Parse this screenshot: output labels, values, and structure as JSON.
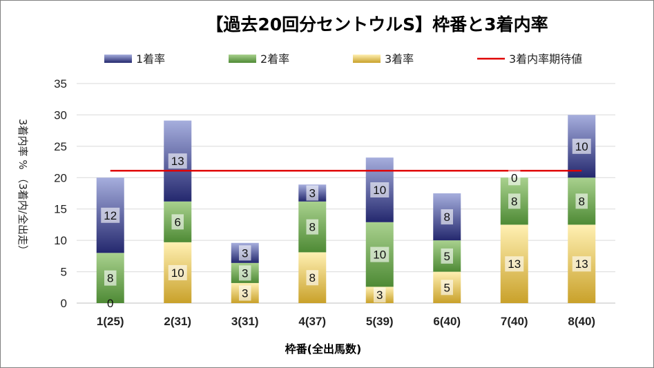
{
  "chart_data": {
    "type": "bar",
    "stacked": true,
    "title": "【過去20回分セントウルS】枠番と3着内率",
    "xlabel": "枠番(全出馬数)",
    "ylabel": "3着内率 % （3着内/全出走）",
    "ylim": [
      0,
      35
    ],
    "ytick_step": 5,
    "grid": true,
    "legend_position": "top",
    "categories": [
      "1(25)",
      "2(31)",
      "3(31)",
      "4(37)",
      "5(39)",
      "6(40)",
      "7(40)",
      "8(40)"
    ],
    "series": [
      {
        "name": "3着率",
        "values": [
          0,
          9.7,
          3.2,
          8.1,
          2.6,
          5.0,
          12.5,
          12.5
        ],
        "labels": [
          "0",
          "10",
          "3",
          "8",
          "3",
          "5",
          "13",
          "13"
        ],
        "color_light": "#fff0b3",
        "color_dark": "#c9a12a"
      },
      {
        "name": "2着率",
        "values": [
          8.0,
          6.5,
          3.2,
          8.1,
          10.3,
          5.0,
          7.5,
          7.5
        ],
        "labels": [
          "8",
          "6",
          "3",
          "8",
          "10",
          "5",
          "8",
          "8"
        ],
        "color_light": "#a9d18e",
        "color_dark": "#4e8a35"
      },
      {
        "name": "1着率",
        "values": [
          12.0,
          12.9,
          3.2,
          2.7,
          10.3,
          7.5,
          0,
          10.0
        ],
        "labels": [
          "12",
          "13",
          "3",
          "3",
          "10",
          "8",
          "0",
          "10"
        ],
        "color_light": "#a6aedd",
        "color_dark": "#24286e"
      }
    ],
    "reference_line": {
      "name": "3着内率期待値",
      "value": 21.1,
      "color": "#e00000"
    }
  }
}
